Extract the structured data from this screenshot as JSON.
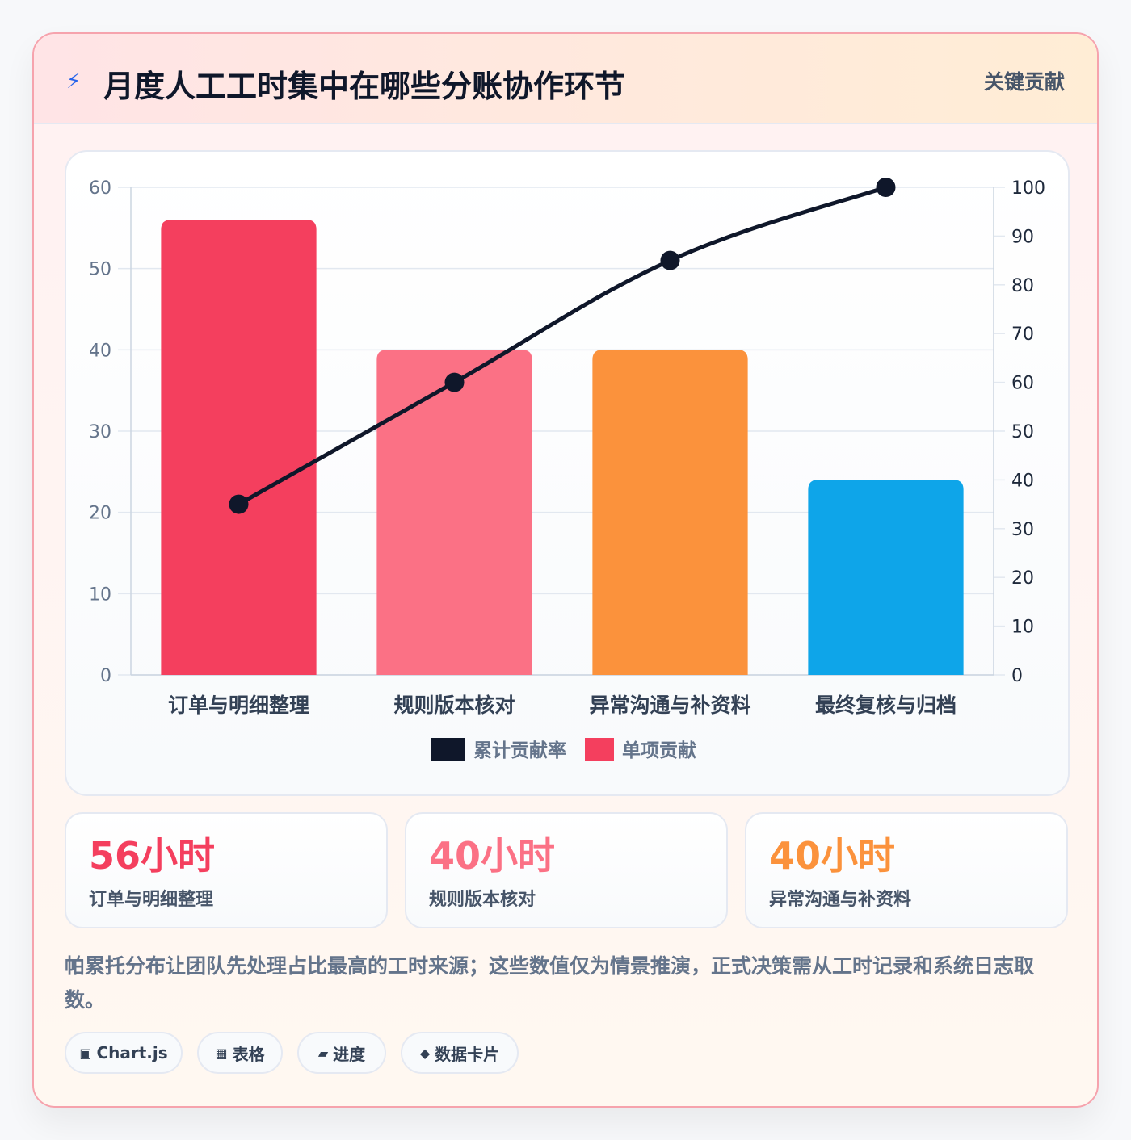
{
  "header": {
    "icon": "lightning-icon",
    "title": "月度人工工时集中在哪些分账协作环节",
    "badge": "关键贡献"
  },
  "chart_data": {
    "type": "bar",
    "categories": [
      "订单与明细整理",
      "规则版本核对",
      "异常沟通与补资料",
      "最终复核与归档"
    ],
    "series": [
      {
        "name": "单项贡献",
        "type": "bar",
        "axis": "left",
        "values": [
          56,
          40,
          40,
          24
        ],
        "colors": [
          "#f43f5e",
          "#fb7185",
          "#fb923c",
          "#0ea5e9"
        ]
      },
      {
        "name": "累计贡献率",
        "type": "line",
        "axis": "right",
        "values": [
          35,
          60,
          85,
          100
        ],
        "color": "#0f172a"
      }
    ],
    "y_left": {
      "range": [
        0,
        60
      ],
      "ticks": [
        "0",
        "10",
        "20",
        "30",
        "40",
        "50",
        "60"
      ]
    },
    "y_right": {
      "range": [
        0,
        100
      ],
      "ticks": [
        "0",
        "10",
        "20",
        "30",
        "40",
        "50",
        "60",
        "70",
        "80",
        "90",
        "100"
      ]
    },
    "grid": true,
    "legend_position": "bottom",
    "legend": [
      {
        "label": "累计贡献率",
        "color": "#0f172a"
      },
      {
        "label": "单项贡献",
        "color": "#f43f5e"
      }
    ]
  },
  "stats": [
    {
      "value": "56小时",
      "label": "订单与明细整理",
      "color": "#f43f5e"
    },
    {
      "value": "40小时",
      "label": "规则版本核对",
      "color": "#fb7185"
    },
    {
      "value": "40小时",
      "label": "异常沟通与补资料",
      "color": "#fb923c"
    }
  ],
  "note": "帕累托分布让团队先处理占比最高的工时来源；这些数值仅为情景推演，正式决策需从工时记录和系统日志取数。",
  "tags": [
    {
      "icon": "▣",
      "label": "Chart.js"
    },
    {
      "icon": "▦",
      "label": "表格"
    },
    {
      "icon": "▰",
      "label": "进度"
    },
    {
      "icon": "◆",
      "label": "数据卡片"
    }
  ]
}
